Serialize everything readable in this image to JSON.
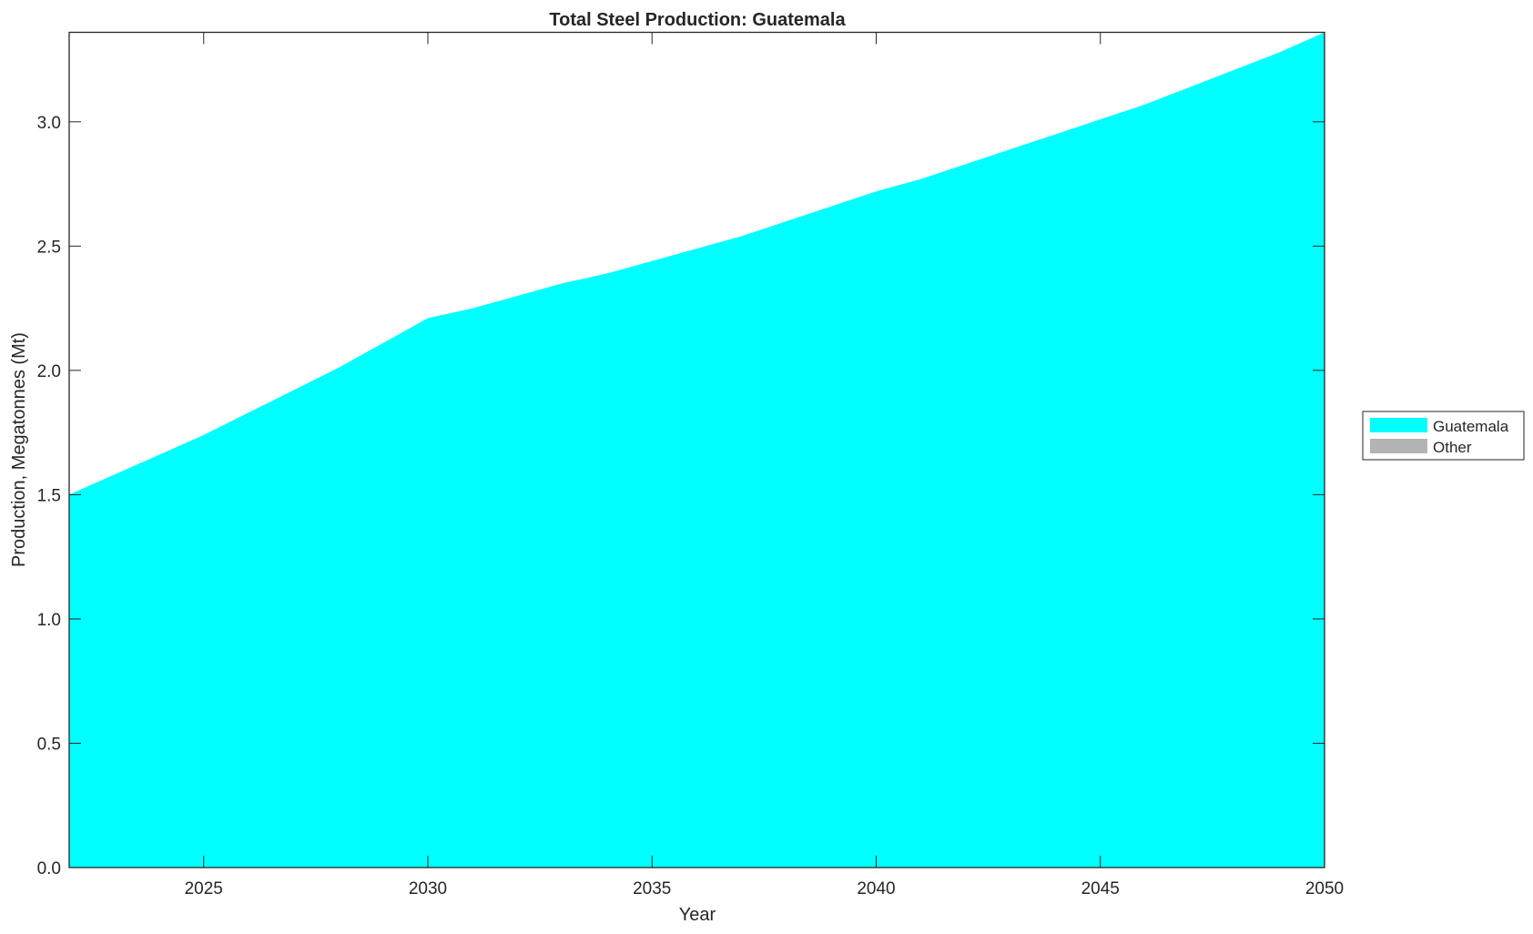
{
  "chart_data": {
    "type": "area",
    "title": "Total Steel Production: Guatemala",
    "xlabel": "Year",
    "ylabel": "Production, Megatonnes (Mt)",
    "xlim": [
      2022,
      2050
    ],
    "ylim": [
      0,
      3.36
    ],
    "xticks": [
      2025,
      2030,
      2035,
      2040,
      2045,
      2050
    ],
    "yticks": [
      0.0,
      0.5,
      1.0,
      1.5,
      2.0,
      2.5,
      3.0
    ],
    "ytick_labels": [
      "0.0",
      "0.5",
      "1.0",
      "1.5",
      "2.0",
      "2.5",
      "3.0"
    ],
    "grid": false,
    "stacked": true,
    "legend_position": "outside-right",
    "x": [
      2022,
      2023,
      2024,
      2025,
      2026,
      2027,
      2028,
      2029,
      2030,
      2031,
      2032,
      2033,
      2034,
      2035,
      2036,
      2037,
      2038,
      2039,
      2040,
      2041,
      2042,
      2043,
      2044,
      2045,
      2046,
      2047,
      2048,
      2049,
      2050
    ],
    "series": [
      {
        "name": "Guatemala",
        "color": "#00ffff",
        "values": [
          1.5,
          1.58,
          1.66,
          1.74,
          1.83,
          1.92,
          2.01,
          2.11,
          2.21,
          2.25,
          2.3,
          2.35,
          2.39,
          2.44,
          2.49,
          2.54,
          2.6,
          2.66,
          2.72,
          2.77,
          2.83,
          2.89,
          2.95,
          3.01,
          3.07,
          3.14,
          3.21,
          3.28,
          3.36
        ]
      },
      {
        "name": "Other",
        "color": "#b3b3b3",
        "values": [
          0,
          0,
          0,
          0,
          0,
          0,
          0,
          0,
          0,
          0,
          0,
          0,
          0,
          0,
          0,
          0,
          0,
          0,
          0,
          0,
          0,
          0,
          0,
          0,
          0,
          0,
          0,
          0,
          0
        ]
      }
    ]
  }
}
